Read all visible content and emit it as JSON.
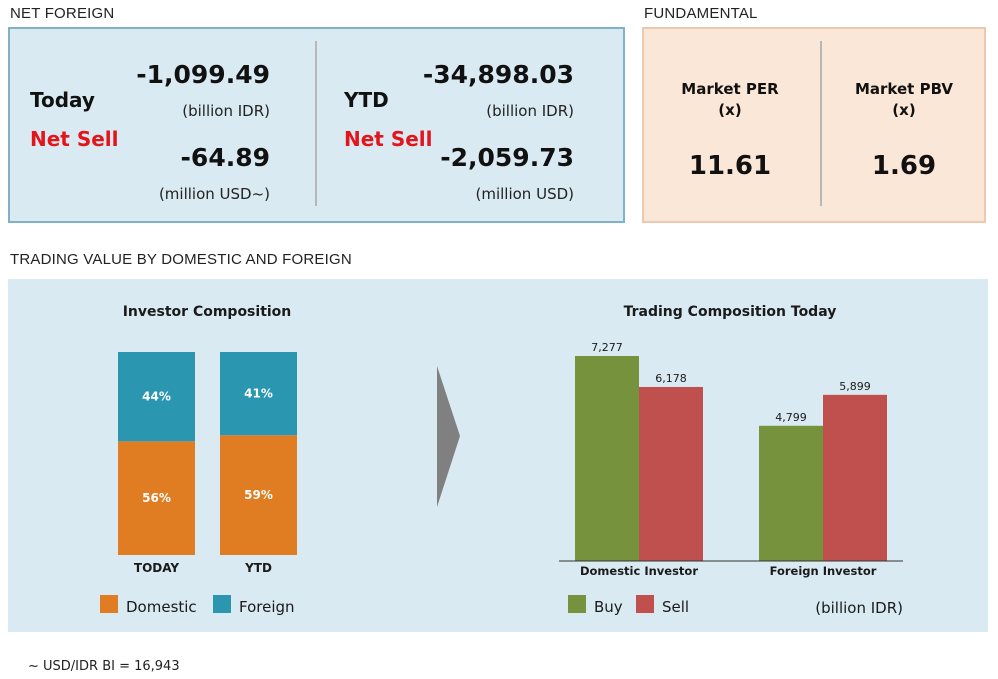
{
  "net_foreign": {
    "title": "NET FOREIGN",
    "today": {
      "label": "Today",
      "status": "Net Sell",
      "value_idr": "-1,099.49",
      "unit_idr": "(billion IDR)",
      "value_usd": "-64.89",
      "unit_usd": "(million USD~)"
    },
    "ytd": {
      "label": "YTD",
      "status": "Net Sell",
      "value_idr": "-34,898.03",
      "unit_idr": "(billion IDR)",
      "value_usd": "-2,059.73",
      "unit_usd": "(million USD)"
    }
  },
  "fundamental": {
    "title": "FUNDAMENTAL",
    "per": {
      "label_line1": "Market PER",
      "label_line2": "(x)",
      "value": "11.61"
    },
    "pbv": {
      "label_line1": "Market PBV",
      "label_line2": "(x)",
      "value": "1.69"
    }
  },
  "trading_value": {
    "title": "TRADING VALUE BY DOMESTIC AND FOREIGN"
  },
  "chart_data": [
    {
      "type": "bar",
      "stacked": true,
      "percent": true,
      "title": "Investor Composition",
      "categories": [
        "TODAY",
        "YTD"
      ],
      "series": [
        {
          "name": "Domestic",
          "values": [
            56,
            59
          ],
          "labels": [
            "56%",
            "59%"
          ],
          "color": "#e07d23"
        },
        {
          "name": "Foreign",
          "values": [
            44,
            41
          ],
          "labels": [
            "44%",
            "41%"
          ],
          "color": "#2a96b0"
        }
      ],
      "legend": "bottom"
    },
    {
      "type": "bar",
      "title": "Trading Composition Today",
      "categories": [
        "Domestic Investor",
        "Foreign Investor"
      ],
      "series": [
        {
          "name": "Buy",
          "values": [
            7277,
            4799
          ],
          "labels": [
            "7,277",
            "4,799"
          ],
          "color": "#76923c"
        },
        {
          "name": "Sell",
          "values": [
            6178,
            5899
          ],
          "labels": [
            "6,178",
            "5,899"
          ],
          "color": "#c0504d"
        }
      ],
      "unit_note": "(billion IDR)",
      "ylim": [
        0,
        7277
      ],
      "legend": "bottom-left"
    }
  ],
  "footnote": "~ USD/IDR BI = 16,943",
  "colors": {
    "arrow": "#808080",
    "panel_blue": "#daeaf2",
    "panel_peach": "#fbe7d8",
    "net_sell": "#e2141c"
  }
}
